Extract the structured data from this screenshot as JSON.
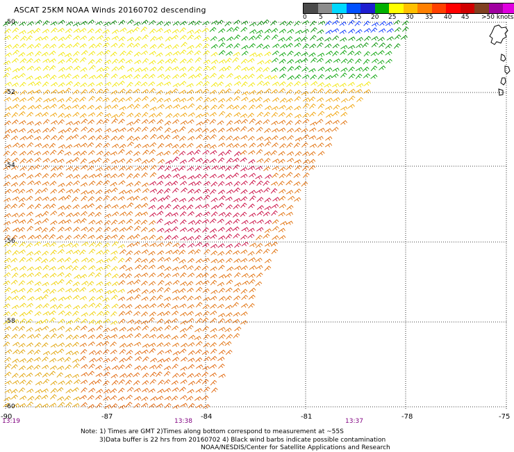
{
  "title": "ASCAT 25KM NOAA Winds 20160702 descending",
  "legend": {
    "labels": [
      "0",
      "5",
      "10",
      "15",
      "20",
      "25",
      "30",
      "35",
      "40",
      "45",
      ">50 knots"
    ],
    "colors": [
      "#4a4a4a",
      "#8c8c8c",
      "#00d8ff",
      "#0050ff",
      "#1e1ed0",
      "#00b000",
      "#ffff00",
      "#ffc000",
      "#ff8000",
      "#ff4000",
      "#ff0000",
      "#d00000",
      "#804020",
      "#a000a0",
      "#e000e0",
      "#7000c0"
    ]
  },
  "lat_labels": [
    "-50",
    "-52",
    "-54",
    "-56",
    "-58",
    "-60"
  ],
  "lon_labels": [
    "-87",
    "-84",
    "-81",
    "-78",
    "-75"
  ],
  "corner_lat": "-60",
  "corner_lon": "-90",
  "times": [
    {
      "text": "13:19"
    },
    {
      "text": "13:38"
    },
    {
      "text": "13:37"
    }
  ],
  "notes": [
    "Note: 1) Times are GMT 2)Times along bottom correspond to measurement at ~55S",
    "3)Data buffer is 22 hrs from 20160702 4) Black wind barbs indicate possible contamination",
    "NOAA/NESDIS/Center for Satellite Applications and Research"
  ]
}
